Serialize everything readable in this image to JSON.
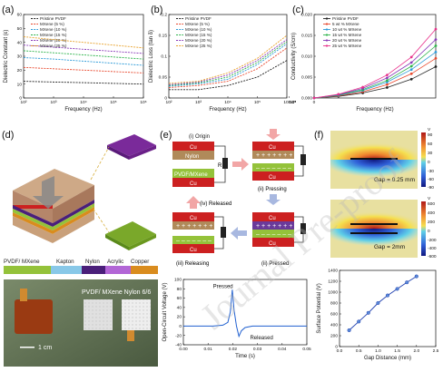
{
  "figure": {
    "panel_labels": [
      "(a)",
      "(b)",
      "(c)",
      "(d)",
      "(e)",
      "(f)"
    ],
    "watermark": "Journal Pre-proof",
    "colors": {
      "cu": "#cc2020",
      "nylon": "#b08a5a",
      "pvdf": "#94c23a",
      "kapton": "#88c8e8",
      "nylon_strip": "#4a1f7a",
      "acrylic": "#b266d6",
      "copper_strip": "#d98c1e",
      "arrow": "#f2a6a6",
      "arrow_blue": "#a8b8e0"
    }
  },
  "chart_data": [
    {
      "type": "line",
      "panel": "(a)",
      "xlabel": "Frequency (Hz)",
      "ylabel": "Dielectric Constant (ε)",
      "log_x": true,
      "xlim": [
        100,
        1000000
      ],
      "ylim": [
        0,
        60
      ],
      "x": [
        100,
        1000,
        10000,
        100000,
        1000000
      ],
      "xticks": [
        "10²",
        "10³",
        "10⁴",
        "10⁵",
        "10⁶"
      ],
      "yticks": [
        0,
        10,
        20,
        30,
        40,
        50,
        60
      ],
      "series": [
        {
          "name": "Pristine PVDF",
          "color": "#222222",
          "values": [
            12,
            11.5,
            11,
            10.5,
            10
          ]
        },
        {
          "name": "MXene (5 %)",
          "color": "#e8472c",
          "values": [
            22,
            21,
            20,
            19,
            18
          ]
        },
        {
          "name": "MXene (10 %)",
          "color": "#2c9ad8",
          "values": [
            29,
            28,
            26.5,
            25,
            23.5
          ]
        },
        {
          "name": "MXene (15 %)",
          "color": "#2cb34a",
          "values": [
            34,
            32.5,
            31,
            29.5,
            28
          ]
        },
        {
          "name": "MXene (20 %)",
          "color": "#8a3ab8",
          "values": [
            38,
            36.5,
            35,
            33.5,
            32
          ]
        },
        {
          "name": "MXene (25 %)",
          "color": "#e8a22c",
          "values": [
            44,
            42,
            40,
            38,
            36
          ]
        }
      ]
    },
    {
      "type": "line",
      "panel": "(b)",
      "xlabel": "Frequency (Hz)",
      "ylabel": "Dielectric Loss (tan δ)",
      "log_x": true,
      "xlim": [
        100,
        1000000
      ],
      "ylim": [
        0,
        0.2
      ],
      "x": [
        100,
        1000,
        10000,
        100000,
        1000000
      ],
      "xticks": [
        "10²",
        "10³",
        "10⁴",
        "10⁵",
        "10⁶"
      ],
      "yticks": [
        0.0,
        0.05,
        0.1,
        0.15,
        0.2
      ],
      "series": [
        {
          "name": "Pristine PVDF",
          "color": "#222222",
          "values": [
            0.02,
            0.02,
            0.03,
            0.05,
            0.09
          ]
        },
        {
          "name": "MXene (5 %)",
          "color": "#e8472c",
          "values": [
            0.025,
            0.03,
            0.04,
            0.07,
            0.12
          ]
        },
        {
          "name": "MXene (10 %)",
          "color": "#2c9ad8",
          "values": [
            0.028,
            0.034,
            0.045,
            0.08,
            0.13
          ]
        },
        {
          "name": "MXene (15 %)",
          "color": "#2cb34a",
          "values": [
            0.03,
            0.036,
            0.05,
            0.085,
            0.135
          ]
        },
        {
          "name": "MXene (20 %)",
          "color": "#8a3ab8",
          "values": [
            0.032,
            0.038,
            0.055,
            0.09,
            0.14
          ]
        },
        {
          "name": "MXene (25 %)",
          "color": "#e8a22c",
          "values": [
            0.035,
            0.04,
            0.06,
            0.095,
            0.15
          ]
        }
      ]
    },
    {
      "type": "line",
      "panel": "(c)",
      "xlabel": "Frequency (Hz)",
      "ylabel": "Conductivity (S/cm)",
      "log_x": false,
      "xlim": [
        0,
        1000000
      ],
      "ylim": [
        0,
        0.02
      ],
      "x": [
        0,
        200000,
        400000,
        600000,
        800000,
        1000000
      ],
      "xticks": [
        "0",
        "2.0x10⁵",
        "4.0x10⁵",
        "6.0x10⁵",
        "8.0x10⁵",
        "1.0x10⁶"
      ],
      "yticks": [
        "0.000",
        "0.005",
        "0.010",
        "0.015",
        "0.020"
      ],
      "ytick_values": [
        0,
        0.005,
        0.01,
        0.015,
        0.02
      ],
      "series": [
        {
          "name": "Pristine PVDF",
          "color": "#222222",
          "values": [
            0,
            0.0004,
            0.0012,
            0.0025,
            0.0045,
            0.0075
          ]
        },
        {
          "name": "5 wt % MXene",
          "color": "#e8472c",
          "values": [
            0,
            0.0005,
            0.0015,
            0.0032,
            0.0058,
            0.0095
          ]
        },
        {
          "name": "10 wt % MXene",
          "color": "#2c9ad8",
          "values": [
            0,
            0.0006,
            0.0018,
            0.0038,
            0.0068,
            0.011
          ]
        },
        {
          "name": "15 wt % MXene",
          "color": "#2cb34a",
          "values": [
            0,
            0.0007,
            0.002,
            0.0042,
            0.0076,
            0.0125
          ]
        },
        {
          "name": "20 wt % MXene",
          "color": "#8a3ab8",
          "values": [
            0,
            0.0008,
            0.0023,
            0.0048,
            0.0085,
            0.014
          ]
        },
        {
          "name": "25 wt % MXene",
          "color": "#e8308a",
          "values": [
            0,
            0.0009,
            0.0026,
            0.0055,
            0.0098,
            0.0165
          ]
        }
      ]
    },
    {
      "type": "line",
      "panel": "(e)",
      "xlabel": "Time (s)",
      "ylabel": "Open-Circuit Voltage (V)",
      "xlim": [
        0,
        0.05
      ],
      "ylim": [
        -40,
        100
      ],
      "xticks": [
        "0.00",
        "0.01",
        "0.02",
        "0.03",
        "0.04",
        "0.05"
      ],
      "xtick_values": [
        0,
        0.01,
        0.02,
        0.03,
        0.04,
        0.05
      ],
      "yticks": [
        -40,
        -20,
        0,
        20,
        40,
        60,
        80,
        100
      ],
      "annotations": [
        "Pressed",
        "Released"
      ],
      "x": [
        0,
        0.012,
        0.016,
        0.018,
        0.019,
        0.0198,
        0.0205,
        0.0215,
        0.0225,
        0.0235,
        0.025,
        0.028,
        0.032,
        0.05
      ],
      "series": [
        {
          "color": "#2060d0",
          "values": [
            0,
            0,
            2,
            8,
            30,
            78,
            35,
            0,
            -22,
            -10,
            -3,
            0,
            0,
            0
          ]
        }
      ]
    },
    {
      "type": "line",
      "panel": "(f)",
      "xlabel": "Gap Distance (mm)",
      "ylabel": "Surface Potential (V)",
      "xlim": [
        0,
        2.5
      ],
      "ylim": [
        0,
        1400
      ],
      "xticks": [
        "0.0",
        "0.5",
        "1.0",
        "1.5",
        "2.0",
        "2.5"
      ],
      "xtick_values": [
        0,
        0.5,
        1,
        1.5,
        2,
        2.5
      ],
      "yticks": [
        0,
        200,
        400,
        600,
        800,
        1000,
        1200,
        1400
      ],
      "x": [
        0.25,
        0.5,
        0.75,
        1.0,
        1.25,
        1.5,
        1.75,
        2.0
      ],
      "series": [
        {
          "color": "#2040b0",
          "values": [
            300,
            460,
            620,
            800,
            940,
            1060,
            1180,
            1290
          ]
        }
      ]
    }
  ],
  "panel_d": {
    "legend": [
      "PVDF/ MXene",
      "Kapton",
      "Nylon",
      "Acrylic",
      "Copper"
    ],
    "photo_label": "PVDF/ MXene Nylon 6/6",
    "scale_label": "1 cm"
  },
  "panel_e": {
    "states": [
      {
        "label": "(i) Origin",
        "layers": [
          "Cu",
          "Nylon",
          "PVDF/MXene",
          "Cu"
        ]
      },
      {
        "label": "(ii) Pressing",
        "layers": [
          "Cu",
          "Cu"
        ]
      },
      {
        "label": "(ii) Pressed",
        "layers": [
          "Cu",
          "Cu"
        ]
      },
      {
        "label": "(iii) Releasing",
        "layers": [
          "Cu",
          "Cu"
        ]
      }
    ],
    "released_label": "(iv) Released",
    "resistor": "R"
  },
  "panel_f": {
    "sim": [
      {
        "label": "Gap = 0.25 mm",
        "scale": [
          "90",
          "60",
          "30",
          "0",
          "-30",
          "-60",
          "-90"
        ],
        "unit": "V"
      },
      {
        "label": "Gap = 2mm",
        "scale": [
          "600",
          "400",
          "200",
          "0",
          "-200",
          "-400",
          "-600"
        ],
        "unit": "V"
      }
    ]
  }
}
